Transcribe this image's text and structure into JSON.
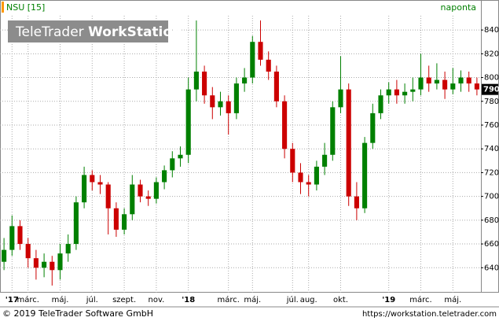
{
  "header": {
    "symbol": "NSU [15]",
    "interval": "naponta",
    "watermark_light": "TeleTrader",
    "watermark_bold": "WorkStation"
  },
  "chart_data": {
    "type": "candlestick",
    "categories": [
      null,
      "'17",
      null,
      "márc.",
      null,
      null,
      null,
      "máj.",
      null,
      null,
      null,
      "júl.",
      null,
      null,
      null,
      "szept.",
      null,
      null,
      null,
      "nov.",
      null,
      null,
      null,
      "'18",
      null,
      null,
      null,
      null,
      "márc.",
      null,
      null,
      "máj.",
      null,
      null,
      null,
      null,
      "júl.",
      null,
      "aug.",
      null,
      null,
      null,
      "okt.",
      null,
      null,
      null,
      null,
      null,
      "'19",
      null,
      null,
      null,
      "márc.",
      null,
      null,
      null,
      "máj.",
      null,
      null,
      null
    ],
    "open": [
      645,
      655,
      675,
      660,
      648,
      640,
      645,
      638,
      652,
      660,
      695,
      718,
      712,
      710,
      690,
      672,
      685,
      710,
      700,
      698,
      712,
      722,
      732,
      735,
      790,
      805,
      785,
      775,
      780,
      770,
      795,
      800,
      830,
      815,
      805,
      780,
      740,
      720,
      712,
      710,
      725,
      735,
      775,
      790,
      700,
      690,
      745,
      770,
      785,
      790,
      785,
      788,
      790,
      800,
      795,
      798,
      790,
      795,
      800,
      795
    ],
    "high": [
      665,
      684,
      680,
      665,
      655,
      652,
      650,
      660,
      668,
      700,
      725,
      722,
      718,
      712,
      695,
      690,
      718,
      714,
      705,
      716,
      726,
      738,
      742,
      800,
      848,
      810,
      792,
      788,
      785,
      800,
      808,
      835,
      848,
      822,
      810,
      785,
      745,
      728,
      718,
      730,
      745,
      780,
      818,
      795,
      712,
      750,
      778,
      790,
      796,
      798,
      795,
      800,
      820,
      810,
      812,
      805,
      808,
      806,
      805,
      800
    ],
    "low": [
      638,
      650,
      655,
      640,
      630,
      632,
      625,
      630,
      645,
      655,
      690,
      705,
      702,
      668,
      666,
      668,
      680,
      695,
      692,
      694,
      706,
      716,
      725,
      728,
      780,
      778,
      765,
      768,
      752,
      765,
      788,
      795,
      810,
      798,
      775,
      732,
      712,
      702,
      700,
      705,
      718,
      730,
      770,
      692,
      680,
      686,
      740,
      765,
      778,
      778,
      778,
      780,
      785,
      788,
      790,
      782,
      786,
      788,
      788,
      785
    ],
    "close": [
      655,
      675,
      660,
      648,
      640,
      645,
      638,
      652,
      660,
      695,
      718,
      712,
      710,
      690,
      672,
      685,
      710,
      700,
      698,
      712,
      722,
      732,
      735,
      790,
      805,
      785,
      775,
      780,
      770,
      795,
      800,
      830,
      815,
      805,
      780,
      740,
      720,
      712,
      710,
      725,
      735,
      775,
      790,
      700,
      690,
      745,
      770,
      785,
      790,
      785,
      788,
      790,
      800,
      795,
      798,
      790,
      795,
      800,
      795,
      790
    ],
    "up_color": "#008000",
    "down_color": "#cc0000",
    "ylim": [
      619,
      852
    ],
    "yticks": [
      640,
      660,
      680,
      700,
      720,
      740,
      760,
      780,
      800,
      820,
      840
    ],
    "grid": true
  },
  "footer": {
    "copyright": "© 2019 TeleTrader Software GmbH",
    "url": "https://workstation.teletrader.com"
  }
}
